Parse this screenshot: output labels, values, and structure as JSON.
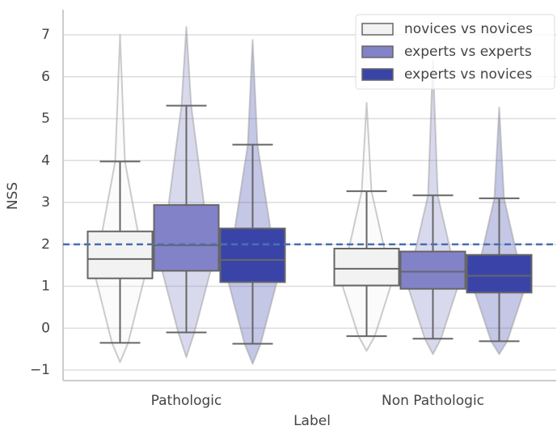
{
  "chart_data": {
    "type": "boxviolin",
    "x_label": "Label",
    "y_label": "NSS",
    "categories": [
      "Pathologic",
      "Non Pathologic"
    ],
    "ylim": [
      -1.25,
      7.6
    ],
    "yticks": [
      {
        "value": -1,
        "label": "−1"
      },
      0,
      1,
      2,
      3,
      4,
      5,
      6,
      7
    ],
    "grid": true,
    "legend": "upper right",
    "reference_line": 2,
    "reference_color": "#4a6fb5",
    "series": [
      {
        "name": "novices vs novices",
        "color": "#f2f2f2",
        "low": [
          -0.35,
          -0.19
        ],
        "q1": [
          1.19,
          1.02
        ],
        "median": [
          1.65,
          1.42
        ],
        "q3": [
          2.31,
          1.9
        ],
        "high": [
          3.98,
          3.27
        ],
        "violin_min": [
          -0.81,
          -0.54
        ],
        "violin_max": [
          7.0,
          5.38
        ]
      },
      {
        "name": "experts vs experts",
        "color": "#8282c8",
        "low": [
          -0.1,
          -0.25
        ],
        "q1": [
          1.37,
          0.94
        ],
        "median": [
          1.98,
          1.35
        ],
        "q3": [
          2.94,
          1.83
        ],
        "high": [
          5.31,
          3.17
        ],
        "violin_min": [
          -0.69,
          -0.62
        ],
        "violin_max": [
          7.19,
          6.4
        ]
      },
      {
        "name": "experts vs novices",
        "color": "#3a44a8",
        "low": [
          -0.37,
          -0.31
        ],
        "q1": [
          1.1,
          0.85
        ],
        "median": [
          1.63,
          1.25
        ],
        "q3": [
          2.38,
          1.75
        ],
        "high": [
          4.38,
          3.1
        ],
        "violin_min": [
          -0.85,
          -0.62
        ],
        "violin_max": [
          6.88,
          5.27
        ]
      }
    ]
  }
}
